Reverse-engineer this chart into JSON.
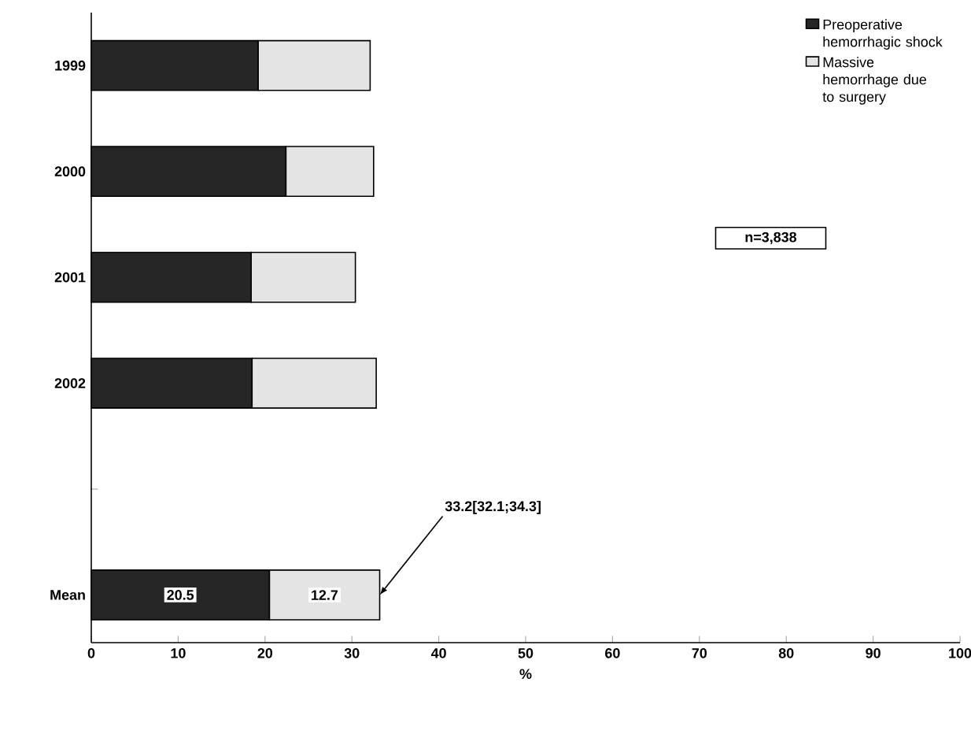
{
  "chart_data": {
    "type": "bar",
    "orientation": "horizontal",
    "stacked": true,
    "categories": [
      "1999",
      "2000",
      "2001",
      "2002",
      null,
      "Mean"
    ],
    "series": [
      {
        "name": "Preoperative hemorrhagic shock",
        "color": "#262626",
        "values": [
          19.2,
          22.4,
          18.4,
          18.5,
          null,
          20.5
        ],
        "value_labels": [
          null,
          null,
          null,
          null,
          null,
          "20.5"
        ]
      },
      {
        "name": "Massive hemorrhage due to surgery",
        "color": "#e4e4e4",
        "values": [
          12.9,
          10.1,
          12.0,
          14.3,
          null,
          12.7
        ],
        "value_labels": [
          null,
          null,
          null,
          null,
          null,
          "12.7"
        ]
      }
    ],
    "xlabel": "%",
    "xlim": [
      0,
      100
    ],
    "xticks": [
      0,
      10,
      20,
      30,
      40,
      50,
      60,
      70,
      80,
      90,
      100
    ],
    "legend": "top right",
    "grid": false,
    "annotations": [
      {
        "text": "33.2[32.1;34.3]",
        "x": 33.2,
        "y": "Mean"
      },
      "n=3,838"
    ]
  }
}
